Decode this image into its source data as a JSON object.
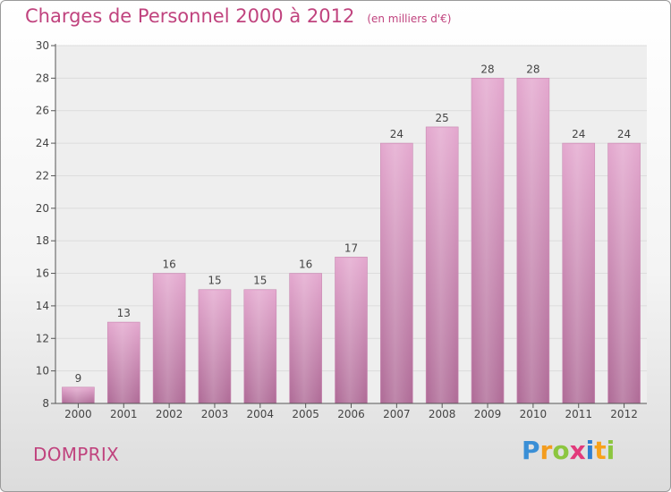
{
  "header": {
    "title": "Charges de Personnel 2000 à 2012",
    "unit": "(en milliers d'€)"
  },
  "footer": {
    "place": "DOMPRIX",
    "logo_letters": [
      "P",
      "r",
      "o",
      "x",
      "i",
      "t",
      "i"
    ],
    "logo_colors": [
      "#3a8fd6",
      "#f39c1e",
      "#8cc63f",
      "#e23a7b",
      "#2f7fd0",
      "#f7a21b",
      "#8cc63f"
    ]
  },
  "chart_data": {
    "type": "bar",
    "categories": [
      "2000",
      "2001",
      "2002",
      "2003",
      "2004",
      "2005",
      "2006",
      "2007",
      "2008",
      "2009",
      "2010",
      "2011",
      "2012"
    ],
    "values": [
      9,
      13,
      16,
      15,
      15,
      16,
      17,
      24,
      25,
      28,
      28,
      24,
      24
    ],
    "data_labels": [
      "9",
      "13",
      "16",
      "15",
      "15",
      "16",
      "17",
      "24",
      "25",
      "28",
      "28",
      "24",
      "24"
    ],
    "ylim": [
      8,
      30
    ],
    "yticks": [
      8,
      10,
      12,
      14,
      16,
      18,
      20,
      22,
      24,
      26,
      28,
      30
    ],
    "grid": true,
    "bar_color_top": "#e4a9cf",
    "bar_color_bottom": "#b06d98",
    "label_color": "#444444"
  }
}
